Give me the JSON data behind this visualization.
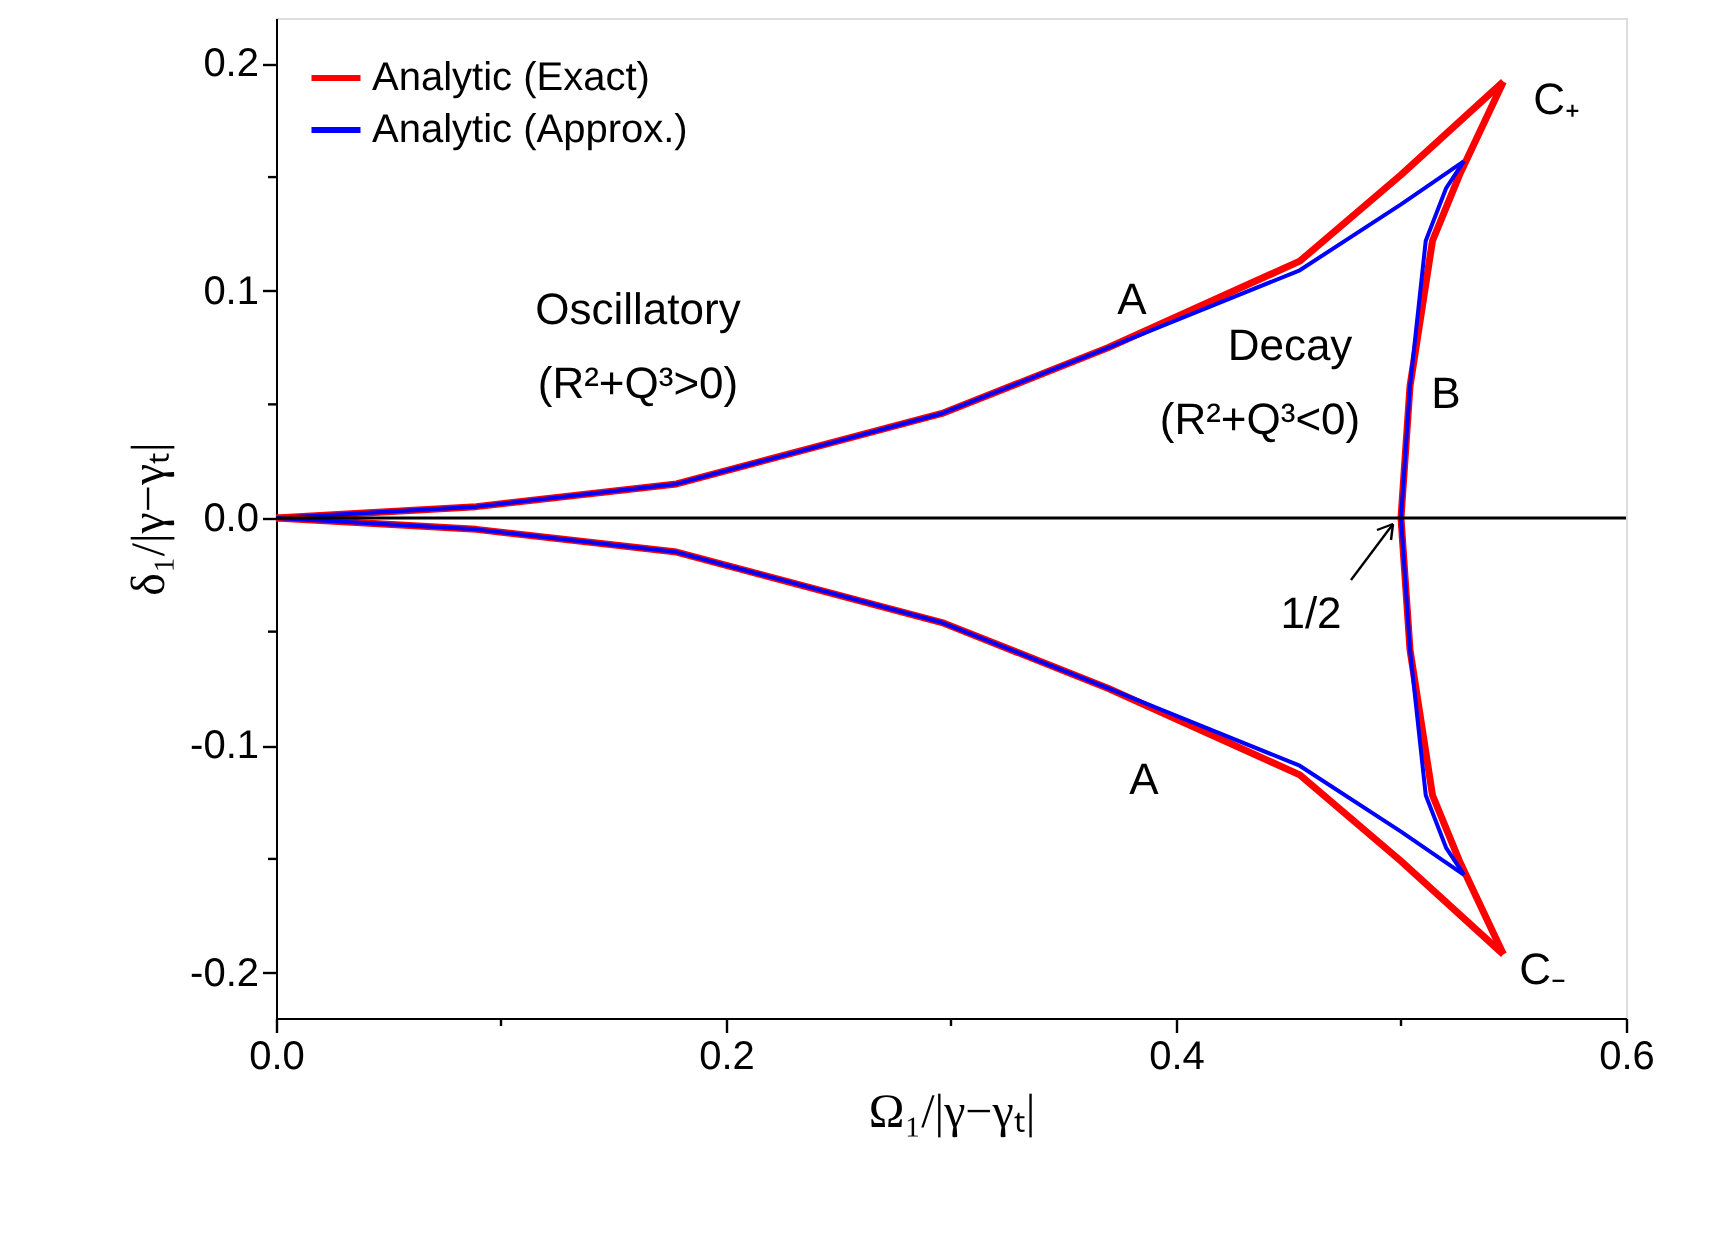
{
  "chart_data": {
    "type": "line",
    "xlabel": "Ω₁/|γ−γₜ|",
    "ylabel": "δ₁/|γ−γₜ|",
    "xlim": [
      0,
      0.6
    ],
    "ylim": [
      -0.22,
      0.22
    ],
    "xticks": [
      {
        "value": 0,
        "label": "0.0"
      },
      {
        "value": 0.1,
        "label": null
      },
      0.2,
      {
        "value": 0.3,
        "label": null
      },
      0.4,
      {
        "value": 0.5,
        "label": null
      },
      0.6
    ],
    "yticks": [
      -0.2,
      {
        "value": -0.15,
        "label": null
      },
      -0.1,
      {
        "value": -0.05,
        "label": null
      },
      {
        "value": 0,
        "label": "0.0"
      },
      {
        "value": 0.05,
        "label": null
      },
      0.1,
      {
        "value": 0.15,
        "label": null
      },
      0.2
    ],
    "series": [
      {
        "name": "Analytic (Exact)",
        "color": "#ff0000",
        "x": [
          0,
          0.089,
          0.178,
          0.296,
          0.37,
          0.455,
          0.5,
          0.5455
        ],
        "values": [
          0,
          0.005,
          0.015,
          0.046,
          0.075,
          0.113,
          0.151,
          0.192
        ]
      },
      {
        "name": "Analytic (Approx.)",
        "color": "#0000ff",
        "x": [
          0,
          0.089,
          0.178,
          0.296,
          0.37,
          0.455,
          0.5,
          0.528
        ],
        "values": [
          0,
          0.005,
          0.015,
          0.046,
          0.075,
          0.109,
          0.138,
          0.157
        ]
      },
      {
        "color": "#ff0000",
        "x": [
          0.5455,
          0.526,
          0.514,
          0.504,
          0.5,
          0.504,
          0.514,
          0.526,
          0.5455
        ],
        "values": [
          0.192,
          0.151,
          0.122,
          0.058,
          0,
          -0.058,
          -0.122,
          -0.151,
          -0.192
        ]
      },
      {
        "color": "#0000ff",
        "x": [
          0.528,
          0.52,
          0.511,
          0.504,
          0.5,
          0.504,
          0.511,
          0.52,
          0.528
        ],
        "values": [
          0.157,
          0.145,
          0.122,
          0.058,
          0,
          -0.058,
          -0.122,
          -0.145,
          -0.157
        ]
      },
      {
        "color": "#ff0000",
        "x": [
          0,
          0.089,
          0.178,
          0.296,
          0.37,
          0.455,
          0.5,
          0.5455
        ],
        "values": [
          0,
          -0.005,
          -0.015,
          -0.046,
          -0.075,
          -0.113,
          -0.151,
          -0.192
        ]
      },
      {
        "color": "#0000ff",
        "x": [
          0,
          0.089,
          0.178,
          0.296,
          0.37,
          0.455,
          0.5,
          0.528
        ],
        "values": [
          0,
          -0.005,
          -0.015,
          -0.046,
          -0.075,
          -0.109,
          -0.138,
          -0.157
        ]
      }
    ],
    "ref_lines": [
      {
        "axis": "y",
        "value": 0,
        "color": "#000000"
      }
    ],
    "annotations": [
      "A",
      "A",
      "B",
      "C₊",
      "C₋",
      "Oscillatory",
      "(R²+Q³>0)",
      "Decay",
      "(R²+Q³<0)",
      {
        "text": "1/2",
        "x": 0.5,
        "y": 0
      }
    ],
    "legend": "top left",
    "grid": false,
    "line_style": "solid",
    "marker": "none"
  }
}
